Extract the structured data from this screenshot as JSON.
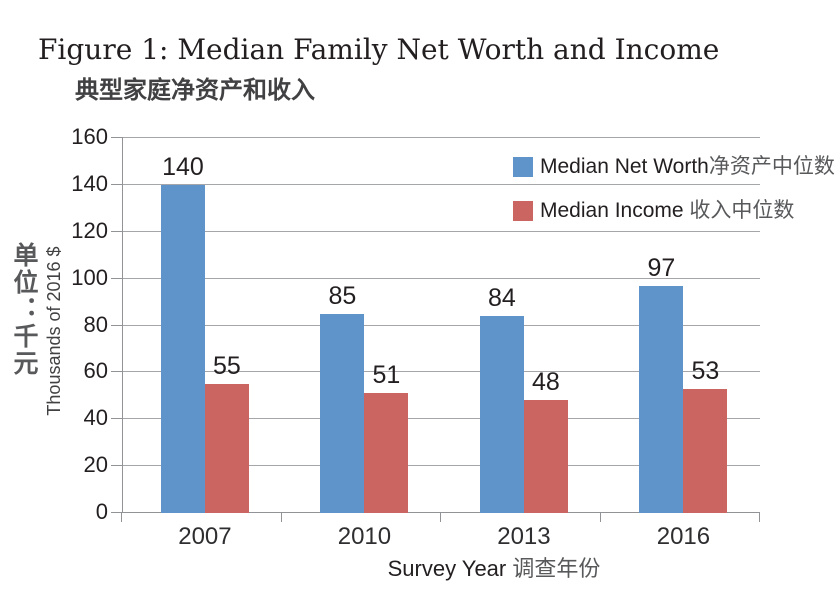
{
  "header": {
    "title": "Figure 1: Median Family Net Worth and Income",
    "subtitle_zh": "典型家庭净资产和收入"
  },
  "y_axis": {
    "title_zh": "单位：千元",
    "title_en": "Thousands of 2016 $",
    "tick_labels": [
      "0",
      "20",
      "40",
      "60",
      "80",
      "100",
      "120",
      "140",
      "160"
    ]
  },
  "x_axis": {
    "title_en": "Survey Year",
    "title_zh": "调查年份",
    "tick_labels": [
      "2007",
      "2010",
      "2013",
      "2016"
    ]
  },
  "legend": [
    {
      "name_en": "Median Net Worth",
      "name_zh": "净资产中位数",
      "color": "#5e94c9"
    },
    {
      "name_en": "Median Income ",
      "name_zh": "收入中位数",
      "color": "#cb6561"
    }
  ],
  "chart_data": {
    "type": "bar",
    "title": "Figure 1: Median Family Net Worth and Income 典型家庭净资产和收入",
    "categories": [
      "2007",
      "2010",
      "2013",
      "2016"
    ],
    "series": [
      {
        "name": "Median Net Worth 净资产中位数",
        "color": "#5e94c9",
        "values": [
          140,
          85,
          84,
          97
        ]
      },
      {
        "name": "Median Income 收入中位数",
        "color": "#cb6561",
        "values": [
          55,
          51,
          48,
          53
        ]
      }
    ],
    "xlabel": "Survey Year 调查年份",
    "ylabel": "Thousands of 2016 $ 单位：千元",
    "ylim": [
      0,
      160
    ],
    "ytick_step": 20,
    "grid": true,
    "bar_labels": true,
    "legend_position": "top-right"
  },
  "colors": {
    "grid": "#a4a6a9",
    "axis": "#919396",
    "text": "#231f20",
    "chinese_gray": "#58595b",
    "net_worth_blue": "#5e94c9",
    "income_red": "#cb6561"
  }
}
